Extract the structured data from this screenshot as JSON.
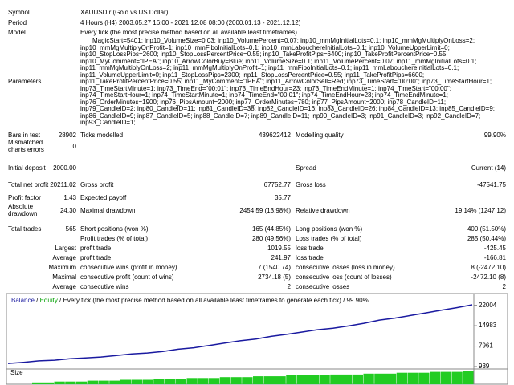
{
  "header": [
    {
      "label": "Symbol",
      "value": "XAUUSD.r (Gold vs US Dollar)"
    },
    {
      "label": "Period",
      "value": "4 Hours (H4) 2003.05.27 16:00 - 2021.12.08 08:00 (2000.01.13 - 2021.12.12)"
    },
    {
      "label": "Model",
      "value": "Every tick (the most precise method based on all available least timeframes)"
    }
  ],
  "parameters": {
    "label": "Parameters",
    "lines": [
      "MagicStart=5401; inp10_VolumeSize=0.03; inp10_VolumePercent=0.07; inp10_mmMgInitialLots=0.1; inp10_mmMgMultiplyOnLoss=2;",
      "inp10_mmMgMultiplyOnProfit=1; inp10_mmFiboInitialLots=0.1; inp10_mmLabouchereInitialLots=0.1; inp10_VolumeUpperLimit=0;",
      "inp10_StopLossPips=2600; inp10_StopLossPercentPrice=0.55; inp10_TakeProfitPips=6400; inp10_TakeProfitPercentPrice=0.55;",
      "inp10_MyComment=\"IPEA\"; inp10_ArrowColorBuy=Blue; inp11_VolumeSize=0.1; inp11_VolumePercent=0.07; inp11_mmMgInitialLots=0.1;",
      "inp11_mmMgMultiplyOnLoss=2; inp11_mmMgMultiplyOnProfit=1; inp11_mmFiboInitialLots=0.1; inp11_mmLabouchereInitialLots=0.1;",
      "inp11_VolumeUpperLimit=0; inp11_StopLossPips=2300; inp11_StopLossPercentPrice=0.55; inp11_TakeProfitPips=6600;",
      "inp11_TakeProfitPercentPrice=0.55; inp11_MyComment=\"IPEA\"; inp11_ArrowColorSell=Red; inp73_TimeStart=\"00:00\"; inp73_TimeStartHour=1;",
      "inp73_TimeStartMinute=1; inp73_TimeEnd=\"00:01\"; inp73_TimeEndHour=23; inp73_TimeEndMinute=1; inp74_TimeStart=\"00:00\";",
      "inp74_TimeStartHour=1; inp74_TimeStartMinute=1; inp74_TimeEnd=\"00:01\"; inp74_TimeEndHour=23; inp74_TimeEndMinute=1;",
      "inp76_OrderMinutes=1900; inp76_PipsAmount=2000; inp77_OrderMinutes=780; inp77_PipsAmount=2000; inp78_CandleID=11;",
      "inp79_CandleID=2; inp80_CandleID=11; inp81_CandleID=38; inp82_CandleID=16; inp83_CandleID=26; inp84_CandleID=13; inp85_CandleID=9;",
      "inp86_CandleID=9; inp87_CandleID=5; inp88_CandleID=7; inp89_CandleID=11; inp90_CandleID=3; inp91_CandleID=3; inp92_CandleID=7;",
      "inp93_CandleID=1;"
    ]
  },
  "stats": {
    "rows": [
      {
        "col1": "Bars in test",
        "col2": "28902",
        "col3": "Ticks modelled",
        "col4": "439622412",
        "col5": "Modelling quality",
        "col6": "99.90%"
      },
      {
        "col1": "Mismatched charts errors",
        "col2": "0"
      },
      {
        "col1": "Initial deposit",
        "col2": "2000.00",
        "col5": "Spread",
        "col6": "Current (14)"
      },
      {
        "col1": "Total net profit",
        "col2": "20211.02",
        "col3": "Gross profit",
        "col4": "67752.77",
        "col5": "Gross loss",
        "col6": "-47541.75"
      },
      {
        "col1": "Profit factor",
        "col2": "1.43",
        "col3": "Expected payoff",
        "col4": "35.77"
      },
      {
        "col1": "Absolute drawdown",
        "col2": "24.30",
        "col3": "Maximal drawdown",
        "col4": "2454.59 (13.98%)",
        "col5": "Relative drawdown",
        "col6": "19.14% (1247.12)"
      },
      {
        "col1": "Total trades",
        "col2": "565",
        "col3": "Short positions (won %)",
        "col4": "165 (44.85%)",
        "col5": "Long positions (won %)",
        "col6": "400 (51.50%)"
      },
      {
        "col3": "Profit trades (% of total)",
        "col4": "280 (49.56%)",
        "col5": "Loss trades (% of total)",
        "col6": "285 (50.44%)"
      },
      {
        "col2": "Largest",
        "col3": "profit trade",
        "col4": "1019.55",
        "col5": "loss trade",
        "col6": "-425.45"
      },
      {
        "col2": "Average",
        "col3": "profit trade",
        "col4": "241.97",
        "col5": "loss trade",
        "col6": "-166.81"
      },
      {
        "col2": "Maximum",
        "col3": "consecutive wins (profit in money)",
        "col4": "7 (1540.74)",
        "col5": "consecutive losses (loss in money)",
        "col6": "8 (-2472.10)"
      },
      {
        "col2": "Maximal",
        "col3": "consecutive profit (count of wins)",
        "col4": "2734.18 (5)",
        "col5": "consecutive loss (count of losses)",
        "col6": "-2472.10 (8)"
      },
      {
        "col2": "Average",
        "col3": "consecutive wins",
        "col4": "2",
        "col5": "consecutive losses",
        "col6": "2"
      }
    ]
  },
  "graph": {
    "type": "line",
    "title_parts": [
      "Balance",
      " / ",
      "Equity",
      " / Every tick (the most precise method based on all available least timeframes to generate each tick) / 99.90%"
    ],
    "balance_color": "#1a1aa0",
    "equity_color": "#00a000",
    "ylim": [
      100,
      25500
    ],
    "yticks": [
      22004,
      14983,
      7961,
      939
    ],
    "balance": {
      "values": [
        2000,
        2400,
        2900,
        3100,
        3600,
        3900,
        4200,
        4700,
        5300,
        5600,
        6100,
        6900,
        7400,
        8200,
        9000,
        9800,
        10400,
        11300,
        12000,
        12800,
        13600,
        14100,
        14900,
        15800,
        16900,
        17600,
        18500,
        19400,
        20300,
        21200,
        22200
      ]
    },
    "size_label": "Size",
    "size_color": "#22cc22",
    "size_values": [
      0.02,
      0.02,
      0.03,
      0.03,
      0.03,
      0.04,
      0.04,
      0.04,
      0.05,
      0.05,
      0.05,
      0.06,
      0.06,
      0.06,
      0.07,
      0.07,
      0.07,
      0.08,
      0.08,
      0.08,
      0.09,
      0.09,
      0.09,
      0.1,
      0.1,
      0.1,
      0.1,
      0.11,
      0.11,
      0.11,
      0.12,
      0.12,
      0.12,
      0.13,
      0.13,
      0.13,
      0.14,
      0.14,
      0.14,
      0.15
    ]
  }
}
